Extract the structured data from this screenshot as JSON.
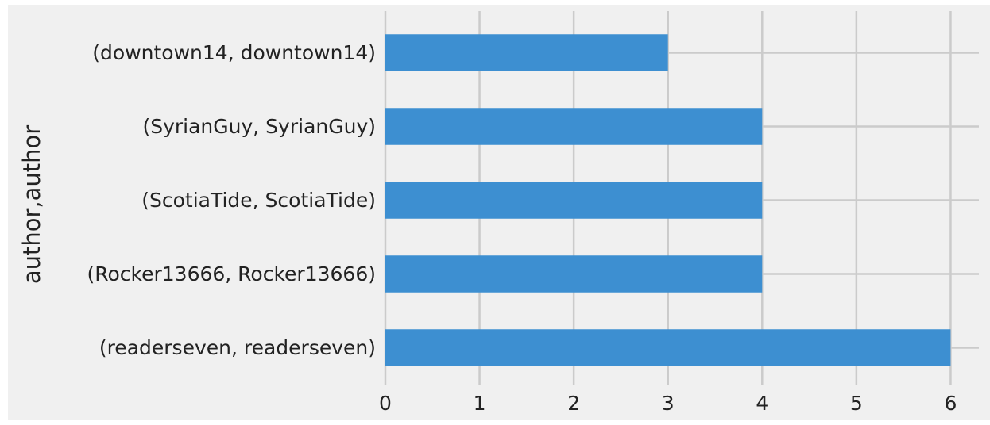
{
  "chart_data": {
    "type": "bar",
    "orientation": "horizontal",
    "categories": [
      "(readerseven, readerseven)",
      "(Rocker13666, Rocker13666)",
      "(ScotiaTide, ScotiaTide)",
      "(SyrianGuy, SyrianGuy)",
      "(downtown14, downtown14)"
    ],
    "values": [
      6,
      4,
      4,
      4,
      3
    ],
    "ylabel": "author,author",
    "xlim": [
      0,
      6.3
    ],
    "xticks": [
      0,
      1,
      2,
      3,
      4,
      5,
      6
    ],
    "grid": true,
    "legend": "none",
    "bar_color": "#3d8fd1",
    "background_color": "#f0f0f0",
    "grid_color": "#cbcbcb"
  }
}
